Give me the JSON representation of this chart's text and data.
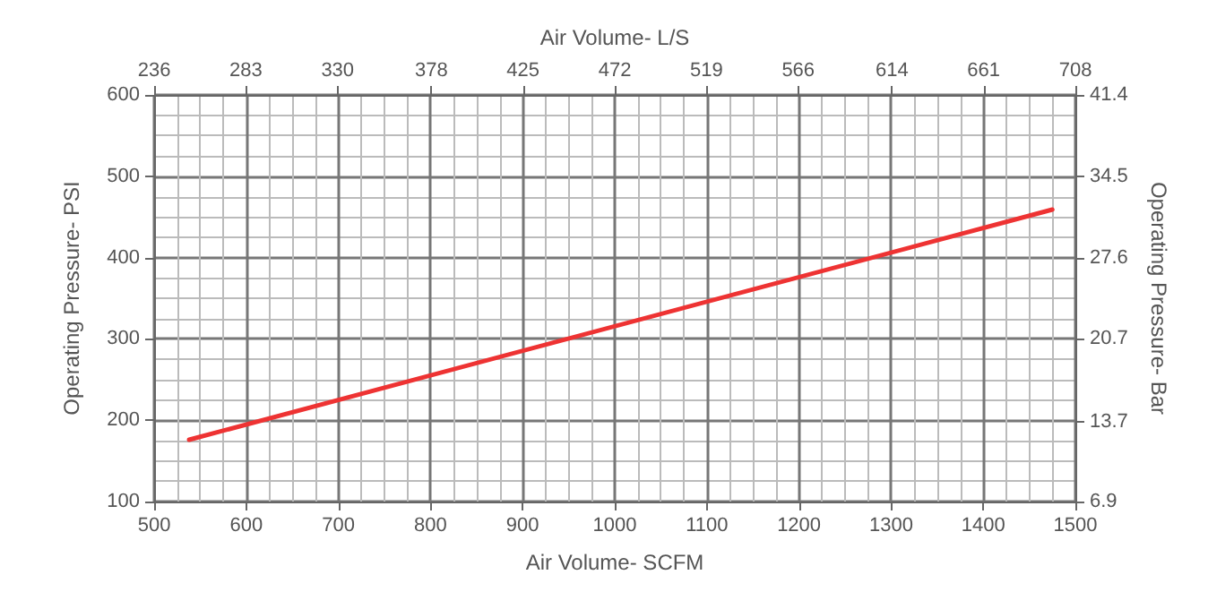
{
  "chart_data": {
    "type": "line",
    "xlabel": "Air Volume- SCFM",
    "x2label": "Air Volume- L/S",
    "ylabel": "Operating Pressure- PSI",
    "y2label": "Operating Pressure- Bar",
    "x": [
      538,
      1475
    ],
    "series": [
      {
        "color": "#ee3333",
        "values": [
          176,
          459
        ]
      }
    ],
    "xlim": [
      500,
      1500
    ],
    "xticks": [
      500,
      600,
      700,
      800,
      900,
      1000,
      1100,
      1200,
      1300,
      1400,
      1500
    ],
    "x2lim": [
      236,
      708
    ],
    "x2ticks": [
      236,
      283,
      330,
      378,
      425,
      472,
      519,
      566,
      614,
      661,
      708
    ],
    "ylim": [
      100,
      600
    ],
    "yticks": [
      100,
      200,
      300,
      400,
      500,
      600
    ],
    "y2lim": [
      6.9,
      41.4
    ],
    "y2ticks": [
      6.9,
      13.7,
      20.7,
      27.6,
      34.5,
      41.4
    ],
    "grid": true,
    "marker": "none",
    "line_style": "solid"
  }
}
